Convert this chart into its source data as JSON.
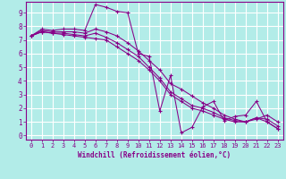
{
  "bg_color": "#b2ece8",
  "grid_color": "#ffffff",
  "line_color": "#880088",
  "xlabel": "Windchill (Refroidissement éolien,°C)",
  "xlim": [
    -0.5,
    23.5
  ],
  "ylim": [
    -0.3,
    9.8
  ],
  "xticks": [
    0,
    1,
    2,
    3,
    4,
    5,
    6,
    7,
    8,
    9,
    10,
    11,
    12,
    13,
    14,
    15,
    16,
    17,
    18,
    19,
    20,
    21,
    22,
    23
  ],
  "yticks": [
    0,
    1,
    2,
    3,
    4,
    5,
    6,
    7,
    8,
    9
  ],
  "series": [
    {
      "x": [
        0,
        1,
        2,
        3,
        4,
        5,
        6,
        7,
        8,
        9,
        10,
        11,
        12,
        13,
        14,
        15,
        16,
        17,
        18,
        19,
        20,
        21,
        22,
        23
      ],
      "y": [
        7.3,
        7.8,
        7.7,
        7.8,
        7.8,
        7.7,
        9.6,
        9.4,
        9.1,
        9.0,
        6.0,
        5.8,
        1.8,
        4.4,
        0.2,
        0.6,
        2.1,
        2.5,
        1.1,
        1.4,
        1.5,
        2.5,
        1.0,
        0.5
      ]
    },
    {
      "x": [
        0,
        1,
        2,
        3,
        4,
        5,
        6,
        7,
        8,
        9,
        10,
        11,
        12,
        13,
        14,
        15,
        16,
        17,
        18,
        19,
        20,
        21,
        22,
        23
      ],
      "y": [
        7.3,
        7.7,
        7.6,
        7.6,
        7.6,
        7.5,
        7.8,
        7.6,
        7.3,
        6.8,
        6.2,
        5.5,
        4.8,
        3.8,
        3.4,
        2.9,
        2.4,
        2.0,
        1.5,
        1.2,
        1.0,
        1.2,
        1.5,
        1.0
      ]
    },
    {
      "x": [
        0,
        1,
        2,
        3,
        4,
        5,
        6,
        7,
        8,
        9,
        10,
        11,
        12,
        13,
        14,
        15,
        16,
        17,
        18,
        19,
        20,
        21,
        22,
        23
      ],
      "y": [
        7.3,
        7.6,
        7.5,
        7.5,
        7.4,
        7.3,
        7.5,
        7.2,
        6.8,
        6.3,
        5.8,
        5.0,
        4.2,
        3.2,
        2.7,
        2.2,
        2.0,
        1.7,
        1.3,
        1.1,
        1.0,
        1.3,
        1.2,
        0.7
      ]
    },
    {
      "x": [
        0,
        1,
        2,
        3,
        4,
        5,
        6,
        7,
        8,
        9,
        10,
        11,
        12,
        13,
        14,
        15,
        16,
        17,
        18,
        19,
        20,
        21,
        22,
        23
      ],
      "y": [
        7.3,
        7.6,
        7.5,
        7.4,
        7.3,
        7.2,
        7.1,
        7.0,
        6.5,
        6.0,
        5.5,
        4.8,
        4.0,
        3.0,
        2.5,
        2.0,
        1.8,
        1.5,
        1.2,
        1.0,
        1.0,
        1.3,
        1.0,
        0.5
      ]
    }
  ]
}
